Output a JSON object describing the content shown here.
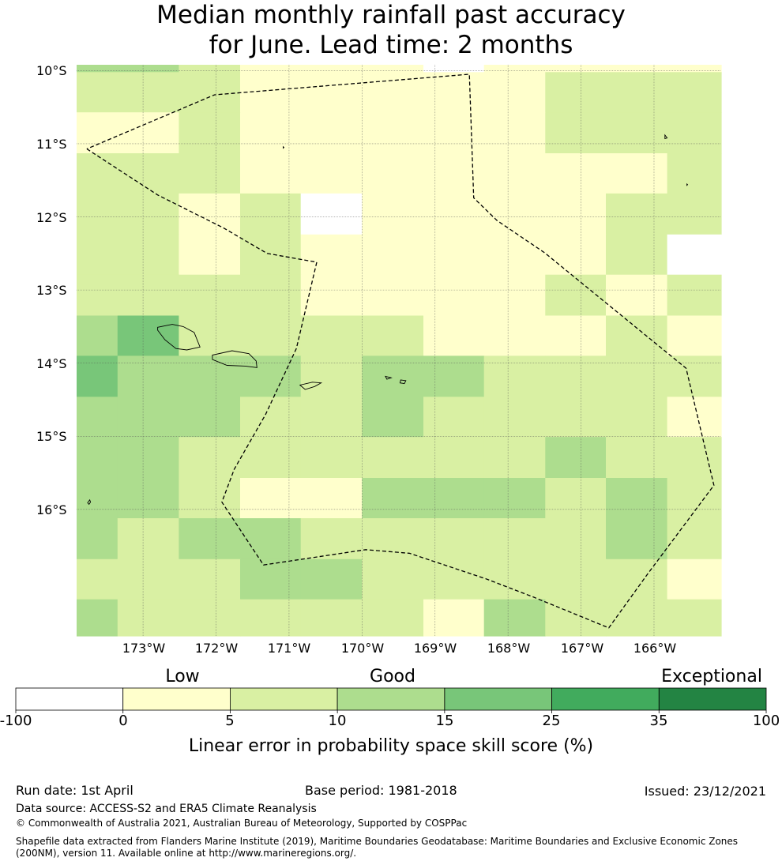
{
  "title": {
    "line1": "Median monthly rainfall past accuracy",
    "line2": "for June. Lead time: 2 months"
  },
  "map": {
    "lat_labels": [
      "10°S",
      "11°S",
      "12°S",
      "13°S",
      "14°S",
      "15°S",
      "16°S"
    ],
    "lon_labels": [
      "173°W",
      "172°W",
      "171°W",
      "170°W",
      "169°W",
      "168°W",
      "167°W",
      "166°W"
    ],
    "extent": {
      "lon_min": -173.91,
      "lon_max": -165.08,
      "lat_top": -9.92,
      "lat_bottom": -17.73
    },
    "grid_lon_edges": [
      -173.91,
      -173.35,
      -172.51,
      -171.67,
      -170.84,
      -170.0,
      -169.16,
      -168.33,
      -167.49,
      -166.66,
      -165.82,
      -165.08
    ],
    "grid_lat_edges": [
      -9.92,
      -10.02,
      -10.57,
      -11.13,
      -11.68,
      -12.24,
      -12.79,
      -13.35,
      -13.9,
      -14.46,
      -15.01,
      -15.57,
      -16.12,
      -16.68,
      -17.23,
      -17.73
    ],
    "cell_categories": [
      [
        3,
        3,
        2,
        1,
        1,
        1,
        0,
        1,
        1,
        1,
        1
      ],
      [
        2,
        2,
        2,
        1,
        1,
        1,
        1,
        1,
        2,
        2,
        2
      ],
      [
        1,
        1,
        2,
        1,
        1,
        1,
        1,
        1,
        2,
        2,
        2
      ],
      [
        2,
        2,
        2,
        1,
        1,
        1,
        1,
        1,
        1,
        1,
        2
      ],
      [
        2,
        2,
        1,
        2,
        0,
        1,
        1,
        1,
        1,
        2,
        2
      ],
      [
        2,
        2,
        1,
        2,
        1,
        1,
        1,
        1,
        1,
        2,
        0
      ],
      [
        2,
        2,
        2,
        2,
        1,
        1,
        1,
        1,
        2,
        1,
        2
      ],
      [
        3,
        4,
        2,
        2,
        2,
        2,
        1,
        1,
        1,
        2,
        1
      ],
      [
        4,
        3,
        3,
        3,
        2,
        3,
        3,
        2,
        2,
        2,
        2
      ],
      [
        3,
        3,
        3,
        2,
        2,
        3,
        2,
        2,
        2,
        2,
        1
      ],
      [
        3,
        3,
        2,
        2,
        2,
        2,
        2,
        2,
        3,
        2,
        2
      ],
      [
        3,
        3,
        2,
        1,
        1,
        3,
        3,
        3,
        2,
        3,
        2
      ],
      [
        3,
        2,
        3,
        3,
        2,
        2,
        2,
        2,
        2,
        3,
        2
      ],
      [
        2,
        2,
        2,
        3,
        3,
        2,
        2,
        2,
        2,
        2,
        1
      ],
      [
        3,
        2,
        2,
        2,
        2,
        2,
        1,
        3,
        2,
        2,
        2
      ]
    ],
    "eez_boundary": [
      [
        -173.77,
        -11.07
      ],
      [
        -172.8,
        -11.7
      ],
      [
        -171.9,
        -12.15
      ],
      [
        -171.3,
        -12.5
      ],
      [
        -170.62,
        -12.62
      ],
      [
        -170.9,
        -13.8
      ],
      [
        -171.32,
        -14.7
      ],
      [
        -171.75,
        -15.45
      ],
      [
        -171.92,
        -15.9
      ],
      [
        -171.35,
        -16.76
      ],
      [
        -169.95,
        -16.55
      ],
      [
        -169.35,
        -16.6
      ],
      [
        -168.3,
        -16.95
      ],
      [
        -167.65,
        -17.2
      ],
      [
        -166.62,
        -17.62
      ],
      [
        -166.1,
        -16.9
      ],
      [
        -165.18,
        -15.67
      ],
      [
        -165.56,
        -14.07
      ],
      [
        -167.5,
        -12.49
      ],
      [
        -168.15,
        -12.05
      ],
      [
        -168.47,
        -11.74
      ],
      [
        -168.53,
        -10.05
      ],
      [
        -172.02,
        -10.33
      ],
      [
        -173.77,
        -11.07
      ]
    ],
    "islands": [
      [
        [
          -172.8,
          -13.51
        ],
        [
          -172.6,
          -13.47
        ],
        [
          -172.45,
          -13.5
        ],
        [
          -172.3,
          -13.58
        ],
        [
          -172.22,
          -13.78
        ],
        [
          -172.4,
          -13.82
        ],
        [
          -172.55,
          -13.8
        ],
        [
          -172.7,
          -13.68
        ],
        [
          -172.8,
          -13.55
        ],
        [
          -172.8,
          -13.51
        ]
      ],
      [
        [
          -172.05,
          -13.89
        ],
        [
          -171.78,
          -13.83
        ],
        [
          -171.55,
          -13.87
        ],
        [
          -171.45,
          -13.97
        ],
        [
          -171.44,
          -14.06
        ],
        [
          -171.6,
          -14.04
        ],
        [
          -171.85,
          -14.03
        ],
        [
          -172.05,
          -13.95
        ],
        [
          -172.05,
          -13.89
        ]
      ],
      [
        [
          -170.85,
          -14.3
        ],
        [
          -170.68,
          -14.26
        ],
        [
          -170.56,
          -14.27
        ],
        [
          -170.65,
          -14.32
        ],
        [
          -170.78,
          -14.36
        ],
        [
          -170.85,
          -14.3
        ]
      ],
      [
        [
          -169.68,
          -14.18
        ],
        [
          -169.6,
          -14.2
        ],
        [
          -169.66,
          -14.22
        ],
        [
          -169.68,
          -14.18
        ]
      ],
      [
        [
          -169.47,
          -14.23
        ],
        [
          -169.4,
          -14.24
        ],
        [
          -169.42,
          -14.28
        ],
        [
          -169.48,
          -14.27
        ],
        [
          -169.47,
          -14.23
        ]
      ],
      [
        [
          -171.08,
          -11.04
        ],
        [
          -171.07,
          -11.05
        ],
        [
          -171.08,
          -11.06
        ],
        [
          -171.08,
          -11.04
        ]
      ],
      [
        [
          -165.85,
          -10.88
        ],
        [
          -165.82,
          -10.92
        ],
        [
          -165.85,
          -10.93
        ],
        [
          -165.85,
          -10.88
        ]
      ],
      [
        [
          -165.55,
          -11.55
        ],
        [
          -165.54,
          -11.56
        ],
        [
          -165.55,
          -11.57
        ],
        [
          -165.55,
          -11.55
        ]
      ],
      [
        [
          -173.73,
          -15.87
        ],
        [
          -173.72,
          -15.9
        ],
        [
          -173.74,
          -15.93
        ],
        [
          -173.76,
          -15.91
        ],
        [
          -173.73,
          -15.87
        ]
      ]
    ]
  },
  "legend": {
    "category_labels": [
      "Low",
      "Good",
      "Exceptional"
    ],
    "ticks": [
      "-100",
      "0",
      "5",
      "10",
      "15",
      "25",
      "35",
      "100"
    ],
    "colors": [
      "#ffffff",
      "#ffffcc",
      "#d9f0a3",
      "#addd8e",
      "#78c679",
      "#41ab5d",
      "#238443"
    ],
    "title": "Linear error in probability space skill score (%)"
  },
  "footer": {
    "run_date": "Run date: 1st April",
    "base_period": "Base period: 1981-2018",
    "issued": "Issued: 23/12/2021",
    "data_source": "Data source: ACCESS-S2 and ERA5 Climate Reanalysis",
    "copyright": "© Commonwealth of Australia 2021, Australian Bureau of Meteorology, Supported by COSPPac",
    "shapefile_line1": "Shapefile data extracted from Flanders Marine Institute (2019), Maritime Boundaries Geodatabase: Maritime Boundaries and Exclusive Economic Zones",
    "shapefile_line2": "(200NM), version 11. Available online at http://www.marineregions.org/."
  }
}
